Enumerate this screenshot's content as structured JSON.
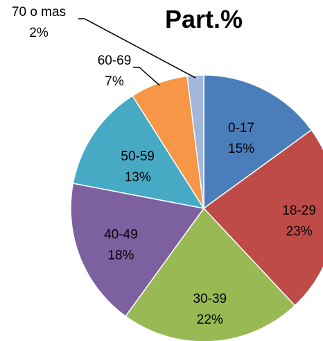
{
  "chart_data": {
    "type": "pie",
    "title": "Part.%",
    "start_angle_deg": 0,
    "direction": "clockwise",
    "slices": [
      {
        "category": "0-17",
        "value": 15,
        "label": "15%",
        "color": "#4A7EBB"
      },
      {
        "category": "18-29",
        "value": 23,
        "label": "23%",
        "color": "#BE4B48"
      },
      {
        "category": "30-39",
        "value": 22,
        "label": "22%",
        "color": "#98B954"
      },
      {
        "category": "40-49",
        "value": 18,
        "label": "18%",
        "color": "#7D60A0"
      },
      {
        "category": "50-59",
        "value": 13,
        "label": "13%",
        "color": "#46AAC5"
      },
      {
        "category": "60-69",
        "value": 7,
        "label": "7%",
        "color": "#F79646"
      },
      {
        "category": "70 o mas",
        "value": 2,
        "label": "2%",
        "color": "#A5B6DB"
      }
    ],
    "legend": "none"
  }
}
